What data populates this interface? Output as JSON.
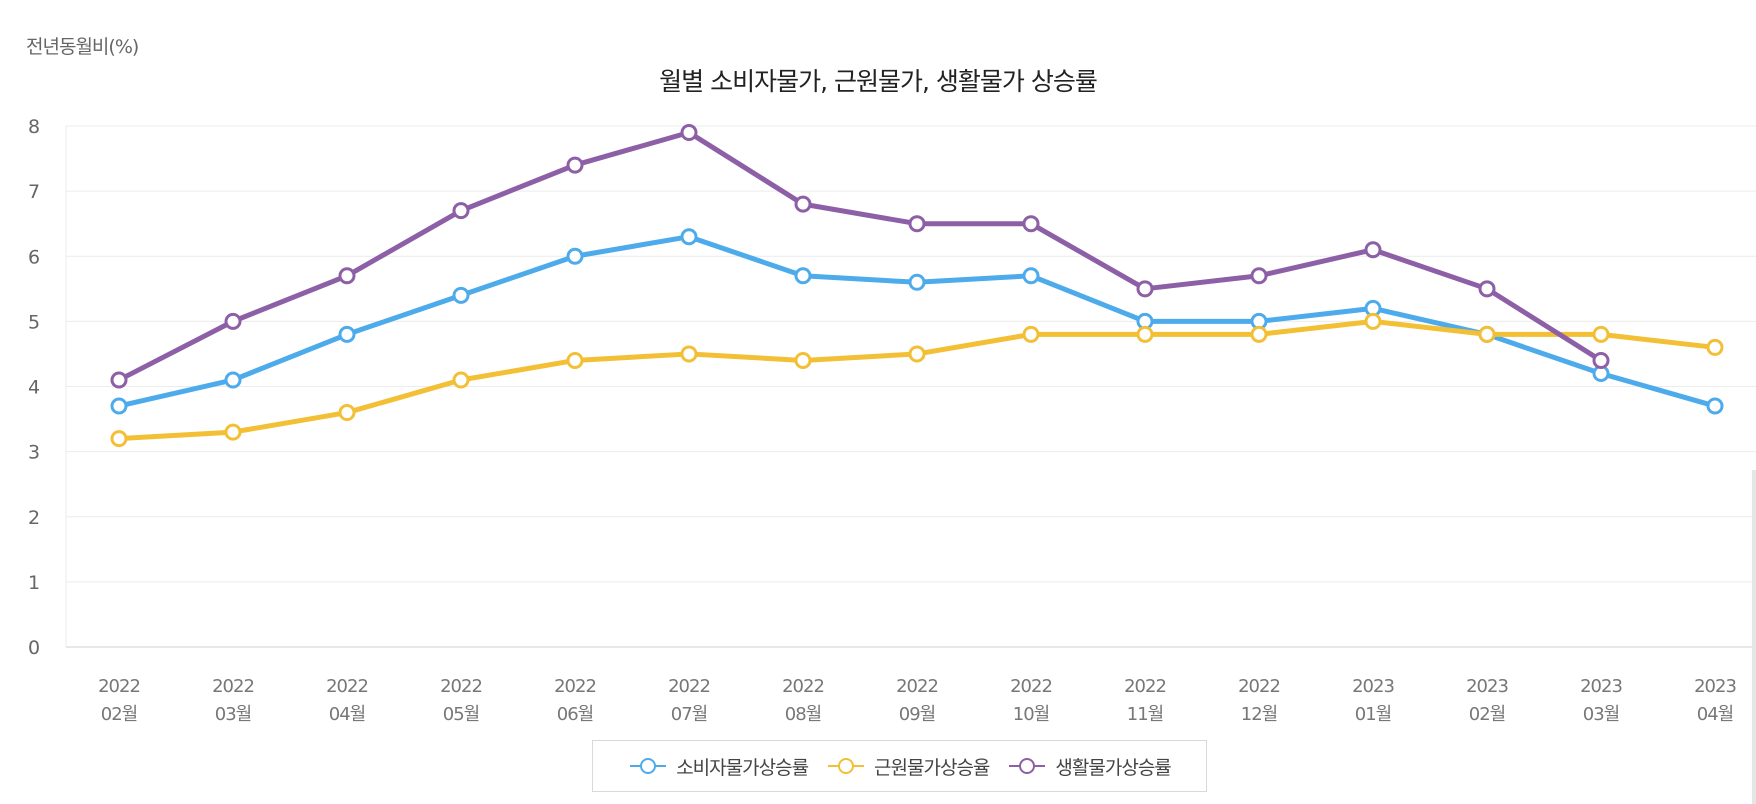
{
  "chart_data": {
    "type": "line",
    "title": "월별 소비자물가, 근원물가, 생활물가 상승률",
    "ylabel": "전년동월비(%)",
    "xlabel": "",
    "ylim": [
      0,
      8
    ],
    "yticks": [
      "0",
      "1",
      "2",
      "3",
      "4",
      "5",
      "6",
      "7",
      "8"
    ],
    "categories": [
      [
        "2022",
        "02월"
      ],
      [
        "2022",
        "03월"
      ],
      [
        "2022",
        "04월"
      ],
      [
        "2022",
        "05월"
      ],
      [
        "2022",
        "06월"
      ],
      [
        "2022",
        "07월"
      ],
      [
        "2022",
        "08월"
      ],
      [
        "2022",
        "09월"
      ],
      [
        "2022",
        "10월"
      ],
      [
        "2022",
        "11월"
      ],
      [
        "2022",
        "12월"
      ],
      [
        "2023",
        "01월"
      ],
      [
        "2023",
        "02월"
      ],
      [
        "2023",
        "03월"
      ],
      [
        "2023",
        "04월"
      ]
    ],
    "grid": true,
    "legend_position": "bottom-center",
    "series": [
      {
        "name": "소비자물가상승률",
        "color": "#4dabec",
        "values": [
          3.7,
          4.1,
          4.8,
          5.4,
          6.0,
          6.3,
          5.7,
          5.6,
          5.7,
          5.0,
          5.0,
          5.2,
          4.8,
          4.2,
          3.7
        ]
      },
      {
        "name": "근원물가상승율",
        "color": "#f2bf35",
        "values": [
          3.2,
          3.3,
          3.6,
          4.1,
          4.4,
          4.5,
          4.4,
          4.5,
          4.8,
          4.8,
          4.8,
          5.0,
          4.8,
          4.8,
          4.6
        ]
      },
      {
        "name": "생활물가상승률",
        "color": "#8c5fa6",
        "values": [
          4.1,
          5.0,
          5.7,
          6.7,
          7.4,
          7.9,
          6.8,
          6.5,
          6.5,
          5.5,
          5.7,
          6.1,
          5.5,
          4.4,
          null
        ]
      }
    ]
  }
}
